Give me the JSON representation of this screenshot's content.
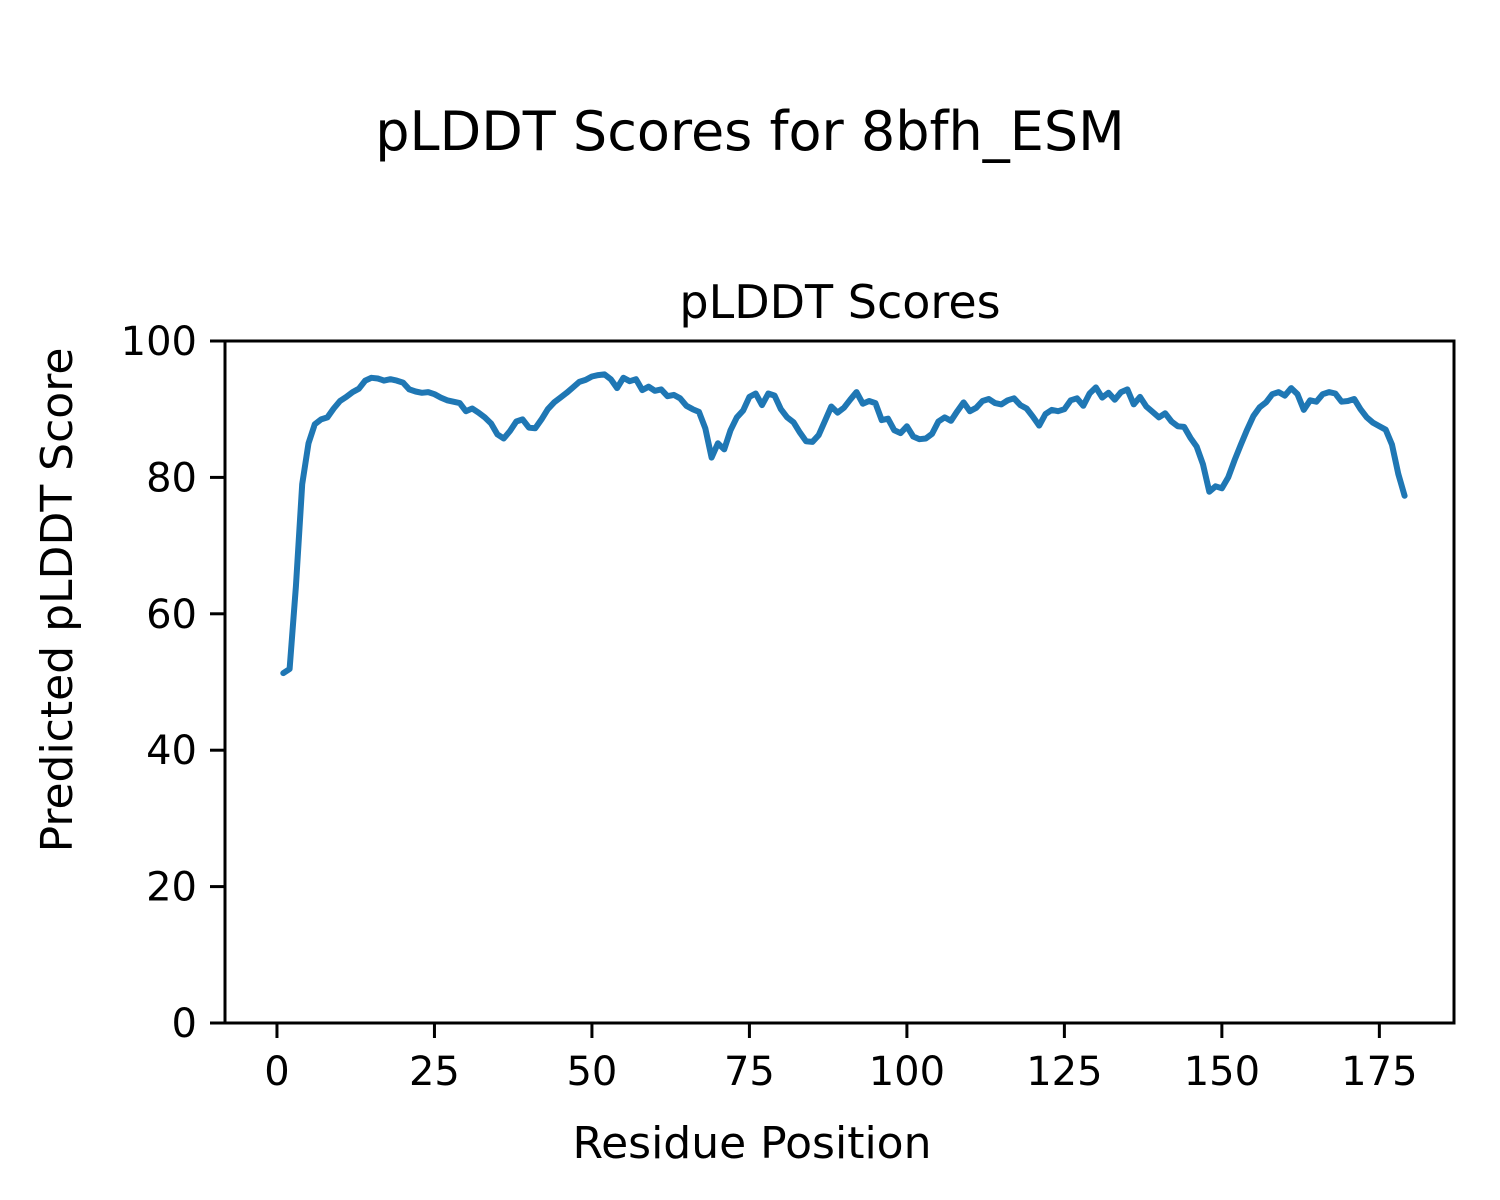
{
  "figure": {
    "suptitle": "pLDDT Scores for 8bfh_ESM"
  },
  "chart_data": {
    "type": "line",
    "title": "pLDDT Scores",
    "xlabel": "Residue Position",
    "ylabel": "Predicted pLDDT Score",
    "series_name": "pLDDT",
    "x_start": 1,
    "x_step": 1,
    "values": [
      51.3,
      51.9,
      64.0,
      79.0,
      85.0,
      87.8,
      88.5,
      88.8,
      90.1,
      91.2,
      91.8,
      92.5,
      93.0,
      94.2,
      94.6,
      94.5,
      94.2,
      94.4,
      94.2,
      93.9,
      92.9,
      92.6,
      92.4,
      92.5,
      92.2,
      91.7,
      91.3,
      91.1,
      90.9,
      89.7,
      90.1,
      89.5,
      88.8,
      87.9,
      86.3,
      85.7,
      86.8,
      88.2,
      88.5,
      87.3,
      87.2,
      88.5,
      90.0,
      91.0,
      91.7,
      92.4,
      93.2,
      94.0,
      94.3,
      94.8,
      95.0,
      95.1,
      94.4,
      93.1,
      94.6,
      94.1,
      94.4,
      92.8,
      93.3,
      92.7,
      92.9,
      91.9,
      92.1,
      91.6,
      90.5,
      90.0,
      89.6,
      87.2,
      82.9,
      85.0,
      84.1,
      86.9,
      88.8,
      89.8,
      91.8,
      92.3,
      90.6,
      92.3,
      92.0,
      90.0,
      88.8,
      88.1,
      86.6,
      85.3,
      85.2,
      86.2,
      88.3,
      90.4,
      89.5,
      90.2,
      91.4,
      92.5,
      90.8,
      91.2,
      90.9,
      88.4,
      88.6,
      86.9,
      86.5,
      87.5,
      86.0,
      85.6,
      85.7,
      86.4,
      88.2,
      88.8,
      88.3,
      89.7,
      91.0,
      89.7,
      90.2,
      91.2,
      91.5,
      90.9,
      90.7,
      91.3,
      91.6,
      90.6,
      90.1,
      88.9,
      87.6,
      89.3,
      89.9,
      89.7,
      90.0,
      91.3,
      91.6,
      90.5,
      92.3,
      93.2,
      91.7,
      92.4,
      91.4,
      92.5,
      92.9,
      90.7,
      91.8,
      90.4,
      89.6,
      88.8,
      89.4,
      88.2,
      87.5,
      87.4,
      85.8,
      84.5,
      81.9,
      77.9,
      78.7,
      78.4,
      80.0,
      82.5,
      84.8,
      87.0,
      89.0,
      90.3,
      91.0,
      92.2,
      92.5,
      92.0,
      93.1,
      92.2,
      89.9,
      91.3,
      91.1,
      92.2,
      92.5,
      92.3,
      91.1,
      91.2,
      91.5,
      90.0,
      88.8,
      88.0,
      87.5,
      87.0,
      84.8,
      80.5,
      77.3
    ],
    "xlim": [
      -8.25,
      186.85
    ],
    "ylim": [
      0,
      100
    ],
    "x_ticks": [
      0,
      25,
      50,
      75,
      100,
      125,
      150,
      175
    ],
    "y_ticks": [
      0,
      20,
      40,
      60,
      80,
      100
    ],
    "line_color": "#1f77b4",
    "line_width": 6,
    "axis_color": "#000000",
    "grid": false
  }
}
